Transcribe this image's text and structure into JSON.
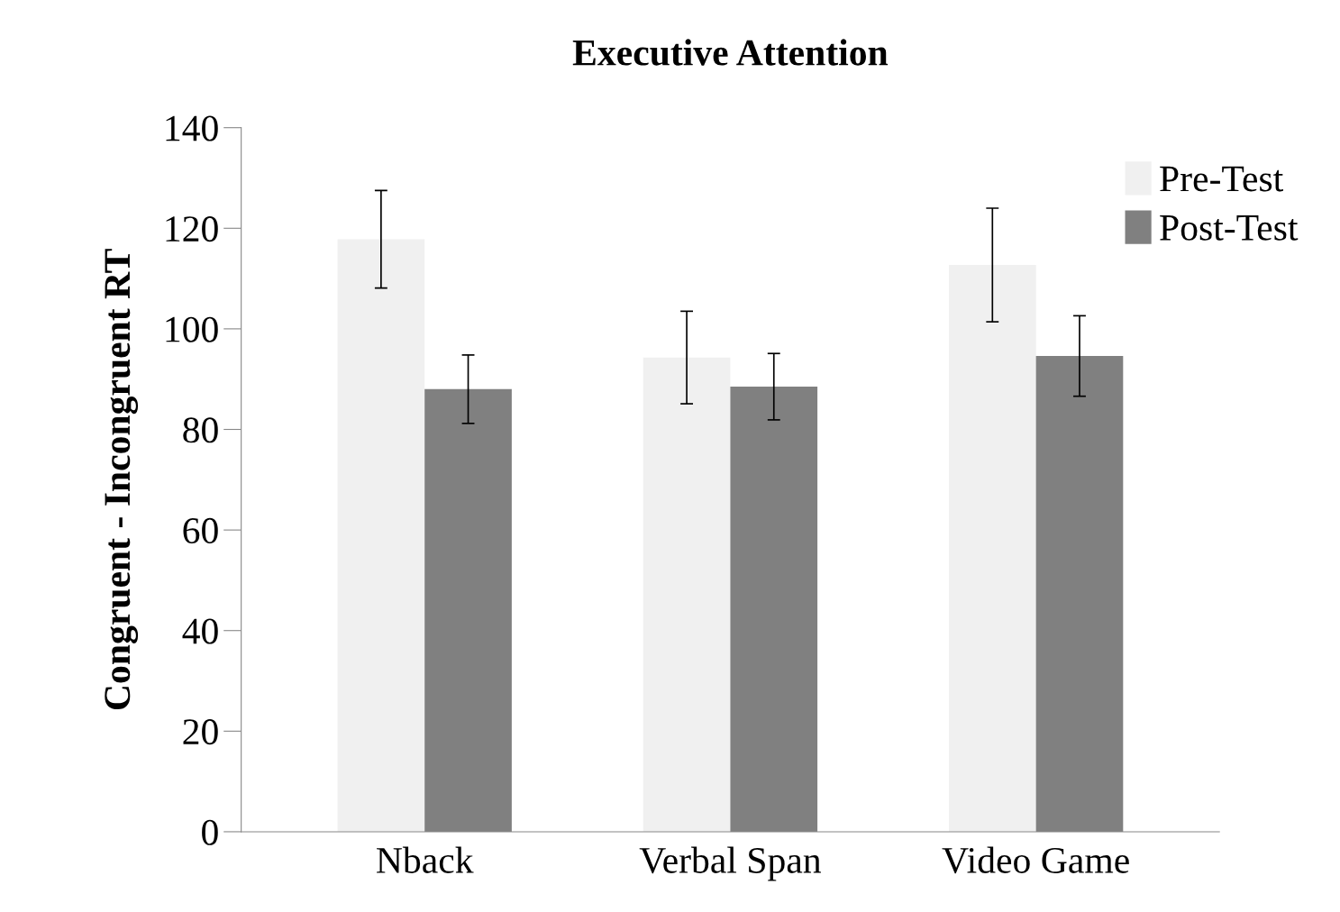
{
  "chart_data": {
    "type": "bar",
    "title": "Executive Attention",
    "ylabel": "Congruent - Incongruent RT",
    "categories": [
      "Nback",
      "Verbal Span",
      "Video Game"
    ],
    "series": [
      {
        "name": "Pre-Test",
        "color": "#f0f0f0",
        "values": [
          117.8,
          94.3,
          112.7
        ],
        "errors": [
          9.7,
          9.2,
          11.3
        ]
      },
      {
        "name": "Post-Test",
        "color": "#808080",
        "values": [
          88.0,
          88.5,
          94.6
        ],
        "errors": [
          6.8,
          6.6,
          8.0
        ]
      }
    ],
    "ylim": [
      0,
      140
    ],
    "yticks": [
      0,
      20,
      40,
      60,
      80,
      100,
      120,
      140
    ],
    "grid": false,
    "legend": "top right"
  }
}
